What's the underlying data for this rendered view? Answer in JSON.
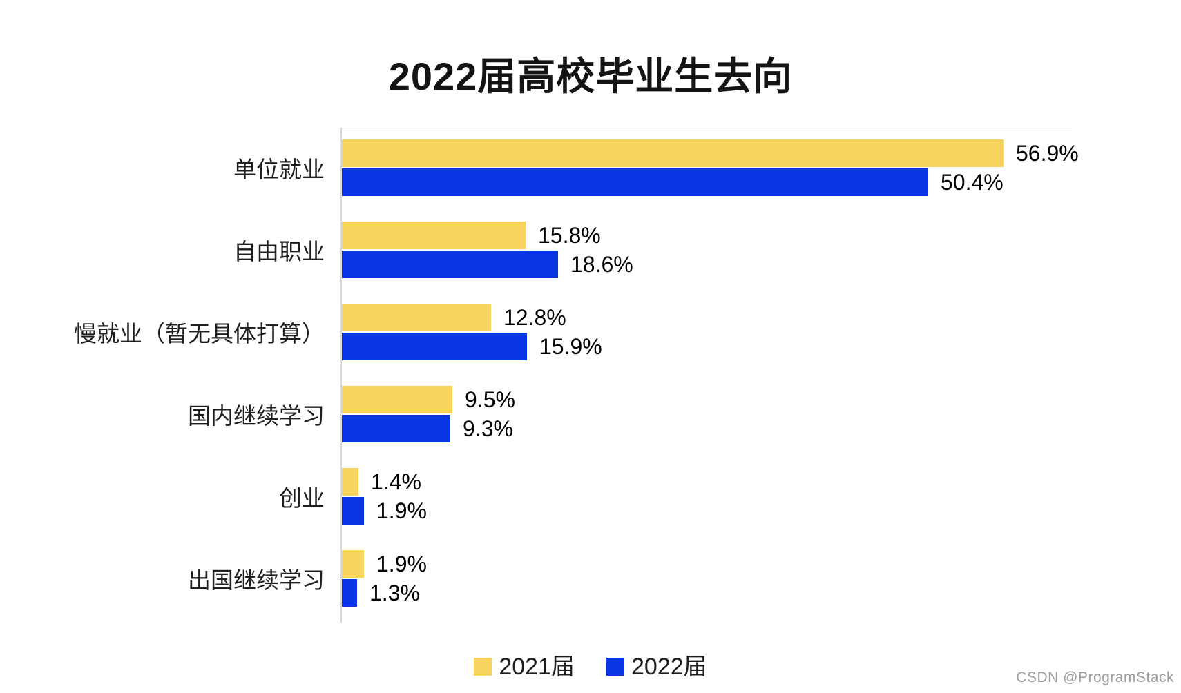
{
  "title": "2022届高校毕业生去向",
  "watermark": "CSDN @ProgramStack",
  "colors": {
    "series_2021": "#F8D45F",
    "series_2022": "#0A35E5",
    "axis_line": "#D9D9D9",
    "category_text": "#1F1F1F",
    "value_text": "#000000",
    "title_text": "#141414",
    "watermark_text": "#9C9C9C",
    "background": "#FFFFFF"
  },
  "chart_data": {
    "type": "bar",
    "orientation": "horizontal",
    "title": "2022届高校毕业生去向",
    "categories": [
      "单位就业",
      "自由职业",
      "慢就业（暂无具体打算）",
      "国内继续学习",
      "创业",
      "出国继续学习"
    ],
    "series": [
      {
        "name": "2021届",
        "color": "#F8D45F",
        "values": [
          56.9,
          15.8,
          12.8,
          9.5,
          1.4,
          1.9
        ]
      },
      {
        "name": "2022届",
        "color": "#0A35E5",
        "values": [
          50.4,
          18.6,
          15.9,
          9.3,
          1.9,
          1.3
        ]
      }
    ],
    "value_suffix": "%",
    "xlim": [
      0,
      60
    ],
    "grid": false,
    "legend_position": "bottom",
    "value_labels_shown": true
  }
}
